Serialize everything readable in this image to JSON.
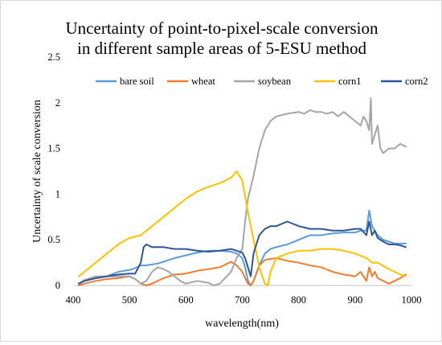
{
  "chart_data": {
    "type": "line",
    "title": [
      "Uncertainty of point-to-pixel-scale conversion",
      "in different sample areas of 5-ESU method"
    ],
    "xlabel": "wavelength(nm)",
    "ylabel": "Uncertainty of scale conversion",
    "xlim": [
      400,
      1000
    ],
    "ylim": [
      0,
      2.5
    ],
    "xticks": [
      400,
      500,
      600,
      700,
      800,
      900,
      1000
    ],
    "yticks": [
      0,
      0.5,
      1,
      1.5,
      2,
      2.5
    ],
    "ytick_labels": [
      "0",
      "0.5",
      "1",
      "1.5",
      "2",
      "2.5"
    ],
    "grid": false,
    "legend_position": "top",
    "series": [
      {
        "name": "bare soil",
        "color": "#5b9bd5",
        "x": [
          410,
          420,
          440,
          460,
          480,
          500,
          510,
          520,
          530,
          540,
          550,
          560,
          570,
          580,
          600,
          620,
          640,
          660,
          680,
          690,
          700,
          705,
          710,
          715,
          720,
          730,
          740,
          750,
          760,
          780,
          800,
          820,
          840,
          860,
          880,
          900,
          910,
          920,
          925,
          930,
          935,
          940,
          950,
          960,
          970,
          980,
          990
        ],
        "y": [
          0.02,
          0.05,
          0.08,
          0.1,
          0.15,
          0.17,
          0.19,
          0.22,
          0.22,
          0.23,
          0.24,
          0.26,
          0.28,
          0.3,
          0.33,
          0.36,
          0.38,
          0.38,
          0.37,
          0.35,
          0.3,
          0.2,
          0.05,
          0.0,
          0.05,
          0.22,
          0.35,
          0.4,
          0.42,
          0.45,
          0.5,
          0.55,
          0.55,
          0.57,
          0.58,
          0.58,
          0.6,
          0.6,
          0.82,
          0.65,
          0.6,
          0.55,
          0.5,
          0.48,
          0.46,
          0.46,
          0.46
        ]
      },
      {
        "name": "wheat",
        "color": "#ed7d31",
        "x": [
          410,
          420,
          440,
          460,
          480,
          500,
          510,
          520,
          530,
          540,
          560,
          580,
          600,
          620,
          640,
          660,
          680,
          690,
          700,
          705,
          710,
          715,
          720,
          730,
          740,
          760,
          780,
          800,
          820,
          840,
          860,
          880,
          900,
          910,
          920,
          925,
          930,
          935,
          940,
          950,
          960,
          970,
          980,
          990
        ],
        "y": [
          0.0,
          0.02,
          0.05,
          0.07,
          0.08,
          0.1,
          0.07,
          0.02,
          0.0,
          0.02,
          0.08,
          0.12,
          0.13,
          0.16,
          0.18,
          0.2,
          0.26,
          0.22,
          0.15,
          0.08,
          0.02,
          0.0,
          0.05,
          0.22,
          0.28,
          0.3,
          0.27,
          0.25,
          0.22,
          0.2,
          0.15,
          0.12,
          0.1,
          0.15,
          0.05,
          0.2,
          0.1,
          0.15,
          0.08,
          0.05,
          0.02,
          0.05,
          0.08,
          0.12
        ]
      },
      {
        "name": "soybean",
        "color": "#a5a5a5",
        "x": [
          410,
          420,
          440,
          460,
          480,
          500,
          510,
          520,
          530,
          540,
          550,
          560,
          570,
          580,
          590,
          600,
          620,
          640,
          650,
          660,
          680,
          690,
          700,
          705,
          710,
          720,
          730,
          740,
          750,
          760,
          780,
          800,
          810,
          820,
          830,
          840,
          850,
          860,
          870,
          880,
          890,
          900,
          910,
          915,
          920,
          925,
          928,
          930,
          935,
          940,
          945,
          950,
          960,
          970,
          980,
          990
        ],
        "y": [
          0.02,
          0.06,
          0.1,
          0.1,
          0.1,
          0.1,
          0.07,
          0.02,
          0.05,
          0.15,
          0.2,
          0.18,
          0.15,
          0.1,
          0.05,
          0.02,
          0.05,
          0.03,
          0.0,
          0.02,
          0.15,
          0.3,
          0.4,
          0.7,
          0.95,
          1.2,
          1.5,
          1.7,
          1.8,
          1.85,
          1.88,
          1.9,
          1.88,
          1.92,
          1.9,
          1.9,
          1.88,
          1.9,
          1.85,
          1.9,
          1.85,
          1.8,
          1.75,
          1.85,
          1.8,
          1.7,
          2.05,
          1.55,
          1.65,
          1.75,
          1.5,
          1.45,
          1.5,
          1.5,
          1.55,
          1.52
        ]
      },
      {
        "name": "corn1",
        "color": "#ffc000",
        "x": [
          410,
          420,
          440,
          460,
          480,
          500,
          520,
          540,
          560,
          580,
          600,
          620,
          640,
          660,
          680,
          690,
          695,
          700,
          710,
          720,
          730,
          740,
          745,
          750,
          760,
          780,
          800,
          820,
          840,
          860,
          880,
          900,
          920,
          930,
          940,
          960,
          980,
          990
        ],
        "y": [
          0.1,
          0.15,
          0.25,
          0.35,
          0.45,
          0.52,
          0.55,
          0.65,
          0.75,
          0.85,
          0.95,
          1.03,
          1.08,
          1.12,
          1.18,
          1.25,
          1.2,
          1.15,
          0.8,
          0.5,
          0.2,
          0.02,
          0.0,
          0.15,
          0.3,
          0.35,
          0.38,
          0.38,
          0.4,
          0.4,
          0.38,
          0.35,
          0.3,
          0.25,
          0.25,
          0.18,
          0.12,
          0.1
        ]
      },
      {
        "name": "corn2",
        "color": "#2f5597",
        "x": [
          410,
          420,
          440,
          460,
          480,
          500,
          510,
          520,
          525,
          530,
          540,
          560,
          580,
          600,
          620,
          640,
          660,
          680,
          690,
          700,
          705,
          710,
          715,
          720,
          730,
          740,
          750,
          760,
          780,
          800,
          820,
          840,
          860,
          880,
          900,
          910,
          920,
          925,
          930,
          935,
          940,
          950,
          960,
          970,
          980,
          990
        ],
        "y": [
          0.02,
          0.05,
          0.08,
          0.1,
          0.12,
          0.13,
          0.13,
          0.25,
          0.42,
          0.45,
          0.42,
          0.42,
          0.4,
          0.4,
          0.38,
          0.37,
          0.38,
          0.4,
          0.38,
          0.36,
          0.3,
          0.2,
          0.1,
          0.35,
          0.55,
          0.62,
          0.65,
          0.65,
          0.7,
          0.65,
          0.62,
          0.62,
          0.6,
          0.6,
          0.62,
          0.62,
          0.55,
          0.7,
          0.55,
          0.6,
          0.52,
          0.48,
          0.45,
          0.45,
          0.44,
          0.42
        ]
      }
    ]
  }
}
